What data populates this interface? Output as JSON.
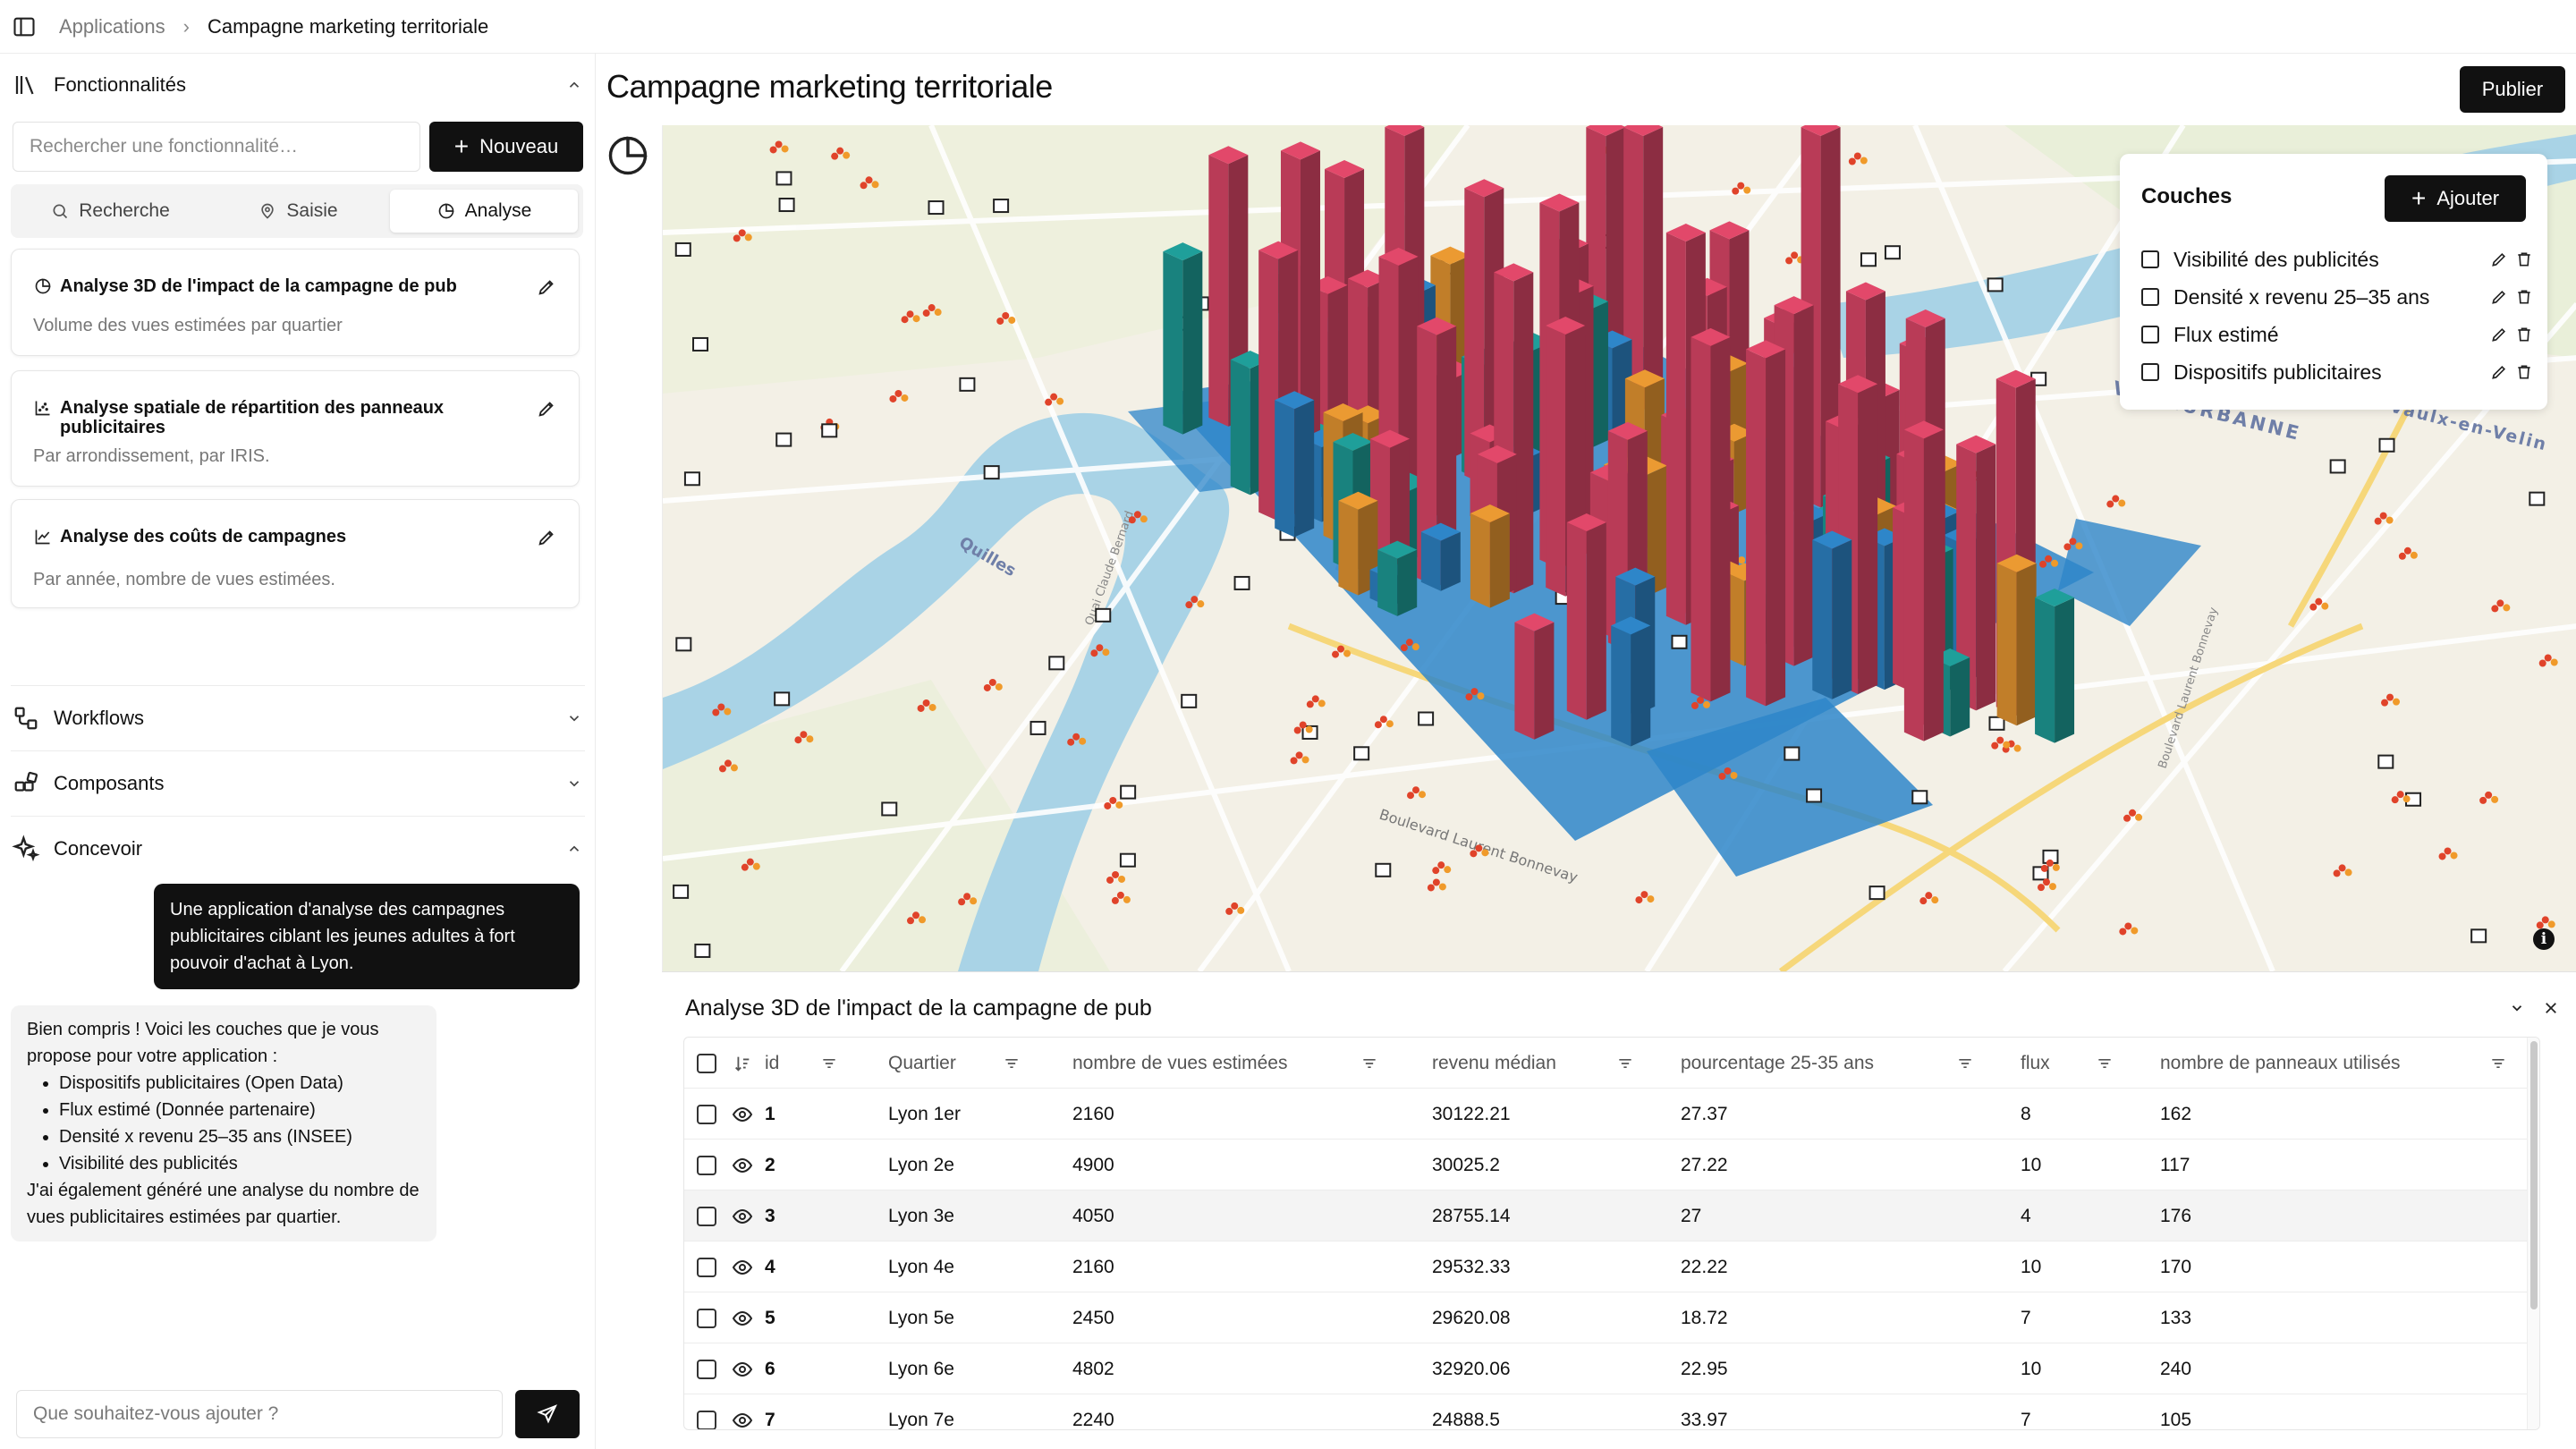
{
  "breadcrumb": {
    "parent": "Applications",
    "current": "Campagne marketing territoriale"
  },
  "sidebar": {
    "features": {
      "title": "Fonctionnalités",
      "search_placeholder": "Rechercher une fonctionnalité…",
      "new_label": "Nouveau",
      "tabs": [
        {
          "label": "Recherche",
          "icon": "search-icon"
        },
        {
          "label": "Saisie",
          "icon": "map-pin-icon"
        },
        {
          "label": "Analyse",
          "icon": "pie-chart-icon"
        }
      ],
      "active_tab": "Analyse",
      "cards": [
        {
          "title": "Analyse 3D de l'impact de la campagne de pub",
          "subtitle": "Volume des vues estimées par quartier",
          "icon": "pie-chart-icon"
        },
        {
          "title": "Analyse spatiale de répartition des panneaux publicitaires",
          "subtitle": "Par arrondissement, par IRIS.",
          "icon": "scatter-chart-icon"
        },
        {
          "title": "Analyse des coûts de campagnes",
          "subtitle": "Par année, nombre de vues estimées.",
          "icon": "line-chart-icon"
        }
      ]
    },
    "sections": [
      {
        "title": "Workflows",
        "icon": "workflow-icon"
      },
      {
        "title": "Composants",
        "icon": "components-icon"
      },
      {
        "title": "Concevoir",
        "icon": "sparkles-icon"
      }
    ],
    "chat": {
      "user_message": "Une application d'analyse des campagnes publicitaires ciblant les jeunes adultes à fort pouvoir d'achat à Lyon.",
      "ai_intro": "Bien compris ! Voici les couches que je vous propose pour votre application :",
      "ai_items": [
        "Dispositifs publicitaires (Open Data)",
        "Flux estimé (Donnée partenaire)",
        "Densité x revenu 25–35 ans (INSEE)",
        "Visibilité des publicités"
      ],
      "ai_outro": "J'ai également généré une analyse du nombre de vues publicitaires estimées par quartier.",
      "input_placeholder": "Que souhaitez-vous ajouter ?"
    }
  },
  "main": {
    "title": "Campagne marketing territoriale",
    "publish_label": "Publier",
    "map": {
      "labels": [
        "VILLEURBANNE",
        "Vaulx-en-Velin",
        "Quai Claude Bernard",
        "Quilles",
        "Boulevard Laurent Bonnevay",
        "Boulevard Laurent Bonnevay"
      ],
      "colors": {
        "pink": "#e2486a",
        "blue": "#2e86c9",
        "orange": "#eb9a32",
        "teal": "#1f9f9a",
        "river": "#a9d3e6"
      }
    },
    "layers": {
      "title": "Couches",
      "add_label": "Ajouter",
      "items": [
        "Visibilité des publicités",
        "Densité x revenu 25–35 ans",
        "Flux estimé",
        "Dispositifs publicitaires"
      ]
    },
    "table": {
      "title": "Analyse 3D de l'impact de la campagne de pub",
      "columns": [
        "id",
        "Quartier",
        "nombre de vues estimées",
        "revenu médian",
        "pourcentage 25-35 ans",
        "flux",
        "nombre de panneaux utilisés"
      ],
      "rows": [
        [
          "1",
          "Lyon 1er",
          "2160",
          "30122.21",
          "27.37",
          "8",
          "162"
        ],
        [
          "2",
          "Lyon 2e",
          "4900",
          "30025.2",
          "27.22",
          "10",
          "117"
        ],
        [
          "3",
          "Lyon 3e",
          "4050",
          "28755.14",
          "27",
          "4",
          "176"
        ],
        [
          "4",
          "Lyon 4e",
          "2160",
          "29532.33",
          "22.22",
          "10",
          "170"
        ],
        [
          "5",
          "Lyon 5e",
          "2450",
          "29620.08",
          "18.72",
          "7",
          "133"
        ],
        [
          "6",
          "Lyon 6e",
          "4802",
          "32920.06",
          "22.95",
          "10",
          "240"
        ],
        [
          "7",
          "Lyon 7e",
          "2240",
          "24888.5",
          "33.97",
          "7",
          "105"
        ]
      ]
    }
  }
}
